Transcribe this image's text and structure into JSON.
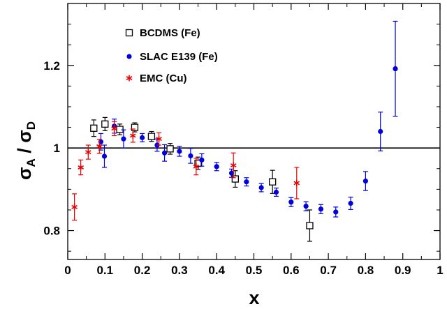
{
  "chart_data": {
    "type": "scatter",
    "xlabel": "x",
    "ylabel": "σA / σD",
    "ylabel_parts": [
      "σ",
      "A",
      " / σ",
      "D"
    ],
    "xlim": [
      0,
      1
    ],
    "ylim": [
      0.73,
      1.35
    ],
    "x_ticks": [
      0,
      0.1,
      0.2,
      0.3,
      0.4,
      0.5,
      0.6,
      0.7,
      0.8,
      0.9,
      1
    ],
    "x_tick_labels": [
      "0",
      "0.1",
      "0.2",
      "0.3",
      "0.4",
      "0.5",
      "0.6",
      "0.7",
      "0.8",
      "0.9",
      "1"
    ],
    "y_ticks": [
      0.8,
      1,
      1.2
    ],
    "y_tick_labels": [
      "0.8",
      "1",
      "1.2"
    ],
    "reference_line": 1,
    "grid": false,
    "legend_position": "top-left",
    "series": [
      {
        "name": "BCDMS (Fe)",
        "marker": "open-square",
        "color": "#000000",
        "points": [
          {
            "x": 0.07,
            "y": 1.048,
            "err": 0.02
          },
          {
            "x": 0.1,
            "y": 1.058,
            "err": 0.016
          },
          {
            "x": 0.14,
            "y": 1.045,
            "err": 0.013
          },
          {
            "x": 0.18,
            "y": 1.05,
            "err": 0.011
          },
          {
            "x": 0.225,
            "y": 1.028,
            "err": 0.012
          },
          {
            "x": 0.275,
            "y": 0.998,
            "err": 0.013
          },
          {
            "x": 0.35,
            "y": 0.963,
            "err": 0.015
          },
          {
            "x": 0.45,
            "y": 0.925,
            "err": 0.02
          },
          {
            "x": 0.55,
            "y": 0.918,
            "err": 0.028
          },
          {
            "x": 0.65,
            "y": 0.812,
            "err": 0.038
          }
        ]
      },
      {
        "name": "SLAC E139 (Fe)",
        "marker": "filled-circle",
        "color": "#0000dd",
        "points": [
          {
            "x": 0.089,
            "y": 1.015,
            "err": 0.02
          },
          {
            "x": 0.0985,
            "y": 0.98,
            "err": 0.027
          },
          {
            "x": 0.125,
            "y": 1.053,
            "err": 0.017
          },
          {
            "x": 0.15,
            "y": 1.022,
            "err": 0.022
          },
          {
            "x": 0.2,
            "y": 1.025,
            "err": 0.01
          },
          {
            "x": 0.24,
            "y": 1.007,
            "err": 0.015
          },
          {
            "x": 0.26,
            "y": 0.988,
            "err": 0.02
          },
          {
            "x": 0.3,
            "y": 0.992,
            "err": 0.012
          },
          {
            "x": 0.33,
            "y": 0.981,
            "err": 0.018
          },
          {
            "x": 0.36,
            "y": 0.971,
            "err": 0.015
          },
          {
            "x": 0.4,
            "y": 0.955,
            "err": 0.01
          },
          {
            "x": 0.44,
            "y": 0.939,
            "err": 0.01
          },
          {
            "x": 0.48,
            "y": 0.918,
            "err": 0.01
          },
          {
            "x": 0.52,
            "y": 0.904,
            "err": 0.01
          },
          {
            "x": 0.56,
            "y": 0.893,
            "err": 0.01
          },
          {
            "x": 0.6,
            "y": 0.869,
            "err": 0.011
          },
          {
            "x": 0.64,
            "y": 0.859,
            "err": 0.011
          },
          {
            "x": 0.68,
            "y": 0.852,
            "err": 0.011
          },
          {
            "x": 0.72,
            "y": 0.845,
            "err": 0.012
          },
          {
            "x": 0.76,
            "y": 0.866,
            "err": 0.015
          },
          {
            "x": 0.8,
            "y": 0.92,
            "err": 0.023
          },
          {
            "x": 0.84,
            "y": 1.04,
            "err": 0.047
          },
          {
            "x": 0.88,
            "y": 1.192,
            "err": 0.115
          }
        ]
      },
      {
        "name": "EMC (Cu)",
        "marker": "asterisk",
        "color": "#ee0000",
        "points": [
          {
            "x": 0.018,
            "y": 0.857,
            "err": 0.032
          },
          {
            "x": 0.035,
            "y": 0.953,
            "err": 0.018
          },
          {
            "x": 0.055,
            "y": 0.99,
            "err": 0.017
          },
          {
            "x": 0.085,
            "y": 1.004,
            "err": 0.017
          },
          {
            "x": 0.125,
            "y": 1.047,
            "err": 0.017
          },
          {
            "x": 0.175,
            "y": 1.03,
            "err": 0.016
          },
          {
            "x": 0.245,
            "y": 1.022,
            "err": 0.015
          },
          {
            "x": 0.345,
            "y": 0.955,
            "err": 0.02
          },
          {
            "x": 0.445,
            "y": 0.958,
            "err": 0.03
          },
          {
            "x": 0.615,
            "y": 0.915,
            "err": 0.038
          }
        ]
      }
    ]
  }
}
